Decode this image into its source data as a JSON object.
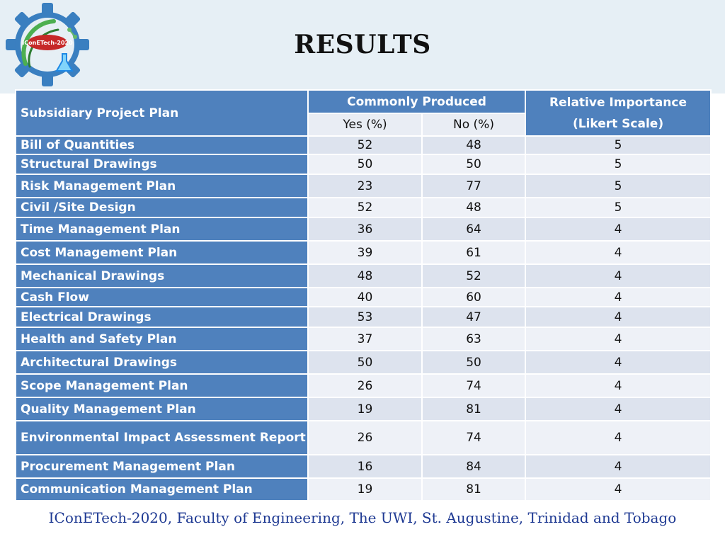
{
  "title": "RESULTS",
  "logo": {
    "text": "IConETech-2020"
  },
  "table": {
    "headers": {
      "plan": "Subsidiary Project Plan",
      "commonly_produced": "Commonly Produced",
      "yes": "Yes (%)",
      "no": "No (%)",
      "relative_importance_line1": "Relative Importance",
      "relative_importance_line2": "(Likert Scale)"
    },
    "rows": [
      {
        "plan": "Bill of Quantities",
        "yes": "52",
        "no": "48",
        "ri": "5"
      },
      {
        "plan": "Structural Drawings",
        "yes": "50",
        "no": "50",
        "ri": "5"
      },
      {
        "plan": "Risk Management Plan",
        "yes": "23",
        "no": "77",
        "ri": "5"
      },
      {
        "plan": "Civil /Site Design",
        "yes": "52",
        "no": "48",
        "ri": "5"
      },
      {
        "plan": "Time Management Plan",
        "yes": "36",
        "no": "64",
        "ri": "4"
      },
      {
        "plan": "Cost Management Plan",
        "yes": "39",
        "no": "61",
        "ri": "4"
      },
      {
        "plan": "Mechanical Drawings",
        "yes": "48",
        "no": "52",
        "ri": "4"
      },
      {
        "plan": "Cash Flow",
        "yes": "40",
        "no": "60",
        "ri": "4"
      },
      {
        "plan": "Electrical Drawings",
        "yes": "53",
        "no": "47",
        "ri": "4"
      },
      {
        "plan": "Health and Safety Plan",
        "yes": "37",
        "no": "63",
        "ri": "4"
      },
      {
        "plan": "Architectural Drawings",
        "yes": "50",
        "no": "50",
        "ri": "4"
      },
      {
        "plan": "Scope Management Plan",
        "yes": "26",
        "no": "74",
        "ri": "4"
      },
      {
        "plan": "Quality Management Plan",
        "yes": "19",
        "no": "81",
        "ri": "4"
      },
      {
        "plan": "Environmental Impact Assessment Report",
        "yes": "26",
        "no": "74",
        "ri": "4"
      },
      {
        "plan": "Procurement Management Plan",
        "yes": "16",
        "no": "84",
        "ri": "4"
      },
      {
        "plan": "Communication Management Plan",
        "yes": "19",
        "no": "81",
        "ri": "4"
      }
    ]
  },
  "footer": "IConETech-2020, Faculty of Engineering, The UWI, St. Augustine, Trinidad and Tobago",
  "colors": {
    "header_blue": "#4f81bd",
    "row_dark": "#dde3ee",
    "row_light": "#eef1f7",
    "header_band": "#e6eff5",
    "footer_text": "#1f3a93"
  }
}
